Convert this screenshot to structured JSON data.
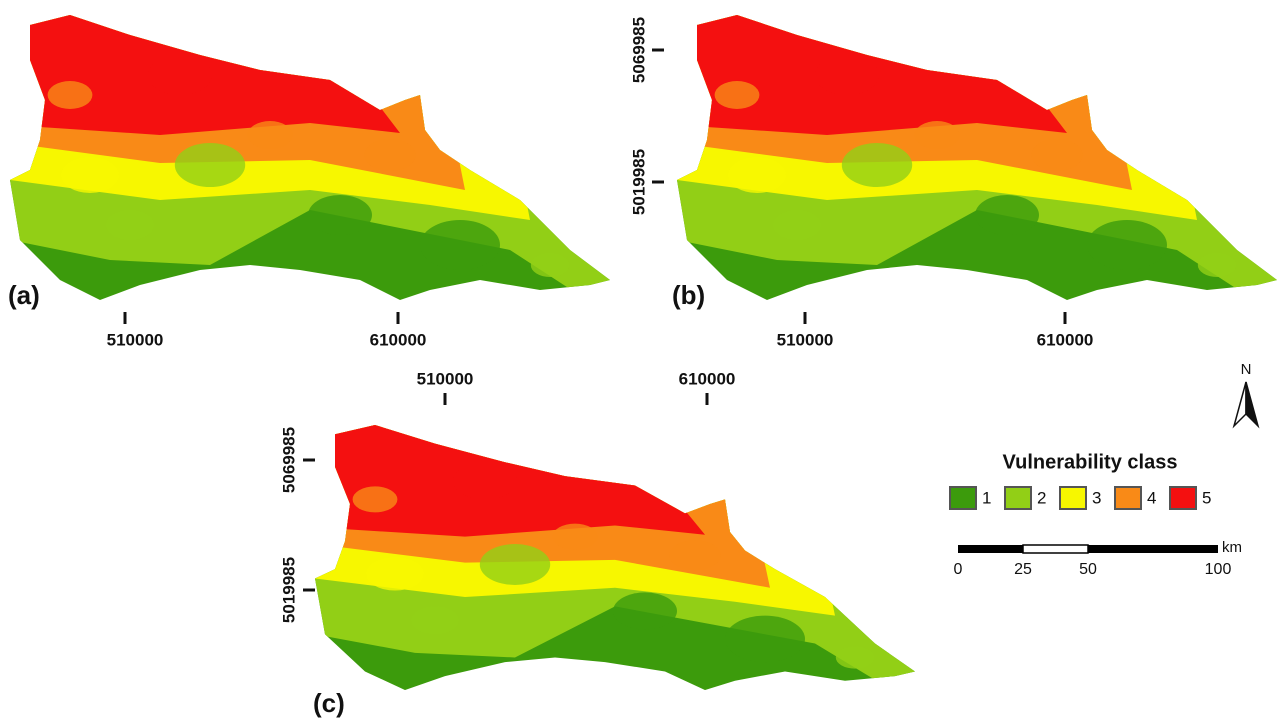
{
  "panels": [
    {
      "label": "(a)",
      "x_ticks": [
        "510000",
        "610000"
      ]
    },
    {
      "label": "(b)",
      "x_ticks": [
        "510000",
        "610000"
      ],
      "y_ticks": [
        "5069985",
        "5019985"
      ]
    },
    {
      "label": "(c)",
      "x_ticks": [
        "510000",
        "610000"
      ],
      "y_ticks": [
        "5069985",
        "5019985"
      ]
    }
  ],
  "north_arrow": "N",
  "legend": {
    "title": "Vulnerability class",
    "classes": [
      {
        "label": "1",
        "color": "#3c9b0c"
      },
      {
        "label": "2",
        "color": "#92cf16"
      },
      {
        "label": "3",
        "color": "#f7f700"
      },
      {
        "label": "4",
        "color": "#f98a17"
      },
      {
        "label": "5",
        "color": "#f41010"
      }
    ]
  },
  "scale_bar": {
    "unit": "km",
    "labels": [
      "0",
      "25",
      "50",
      "100"
    ]
  }
}
